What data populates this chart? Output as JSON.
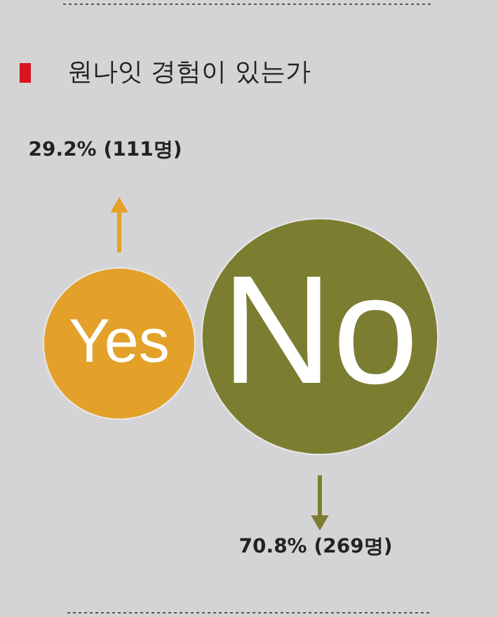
{
  "chart_data": {
    "type": "other",
    "title": "원나잇 경험이 있는가",
    "categories": [
      "Yes",
      "No"
    ],
    "values": [
      29.2,
      70.8
    ],
    "colors": [
      "#e3a12a",
      "#7b7d31"
    ],
    "value_labels": [
      "29.2% (111명)",
      "70.8% (269명)"
    ]
  }
}
